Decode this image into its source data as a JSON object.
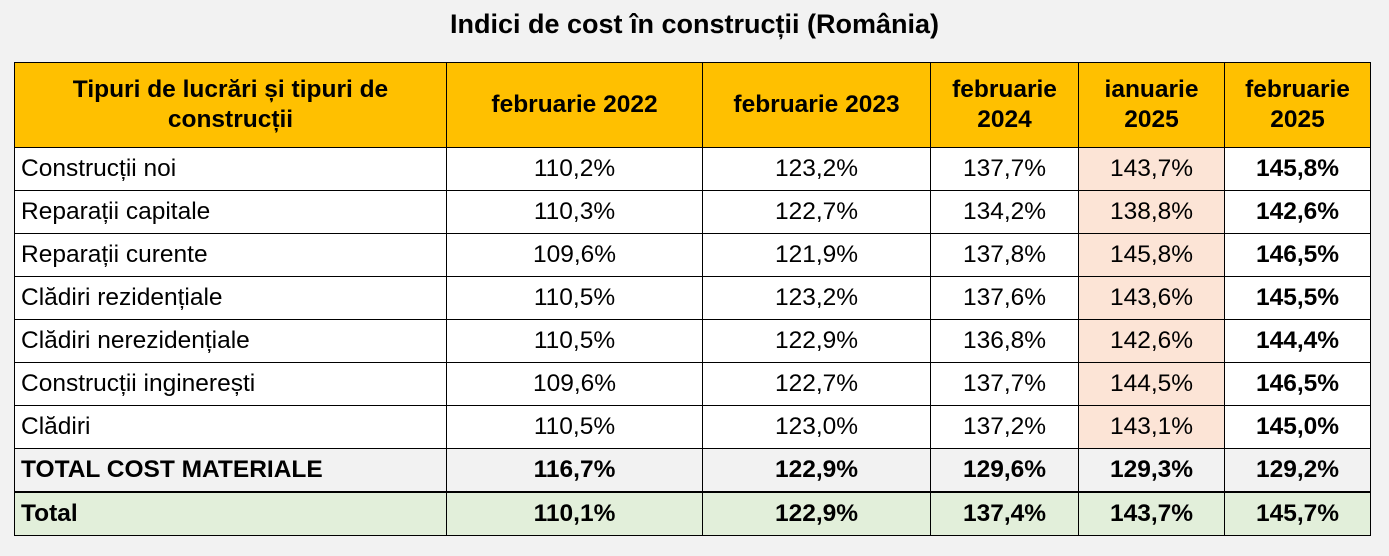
{
  "title": "Indici de cost în construcții (România)",
  "table": {
    "headers": [
      "Tipuri de lucrări și tipuri de construcții",
      "februarie 2022",
      "februarie 2023",
      "februarie 2024",
      "ianuarie 2025",
      "februarie 2025"
    ],
    "rows": [
      {
        "label": "Construcții noi",
        "values": [
          "110,2%",
          "123,2%",
          "137,7%",
          "143,7%",
          "145,8%"
        ]
      },
      {
        "label": "Reparații capitale",
        "values": [
          "110,3%",
          "122,7%",
          "134,2%",
          "138,8%",
          "142,6%"
        ]
      },
      {
        "label": "Reparații curente",
        "values": [
          "109,6%",
          "121,9%",
          "137,8%",
          "145,8%",
          "146,5%"
        ]
      },
      {
        "label": "Clădiri rezidențiale",
        "values": [
          "110,5%",
          "123,2%",
          "137,6%",
          "143,6%",
          "145,5%"
        ]
      },
      {
        "label": "Clădiri nerezidențiale",
        "values": [
          "110,5%",
          "122,9%",
          "136,8%",
          "142,6%",
          "144,4%"
        ]
      },
      {
        "label": "Construcții inginerești",
        "values": [
          "109,6%",
          "122,7%",
          "137,7%",
          "144,5%",
          "146,5%"
        ]
      },
      {
        "label": "Clădiri",
        "values": [
          "110,5%",
          "123,0%",
          "137,2%",
          "143,1%",
          "145,0%"
        ]
      },
      {
        "label": "TOTAL COST MATERIALE",
        "values": [
          "116,7%",
          "122,9%",
          "129,6%",
          "129,3%",
          "129,2%"
        ]
      },
      {
        "label": "Total",
        "values": [
          "110,1%",
          "122,9%",
          "137,4%",
          "143,7%",
          "145,7%"
        ]
      }
    ]
  },
  "colors": {
    "header": "#ffc000",
    "january_column": "#fce4d6",
    "total_row": "#e2efda",
    "material_row": "#f2f2f2"
  }
}
